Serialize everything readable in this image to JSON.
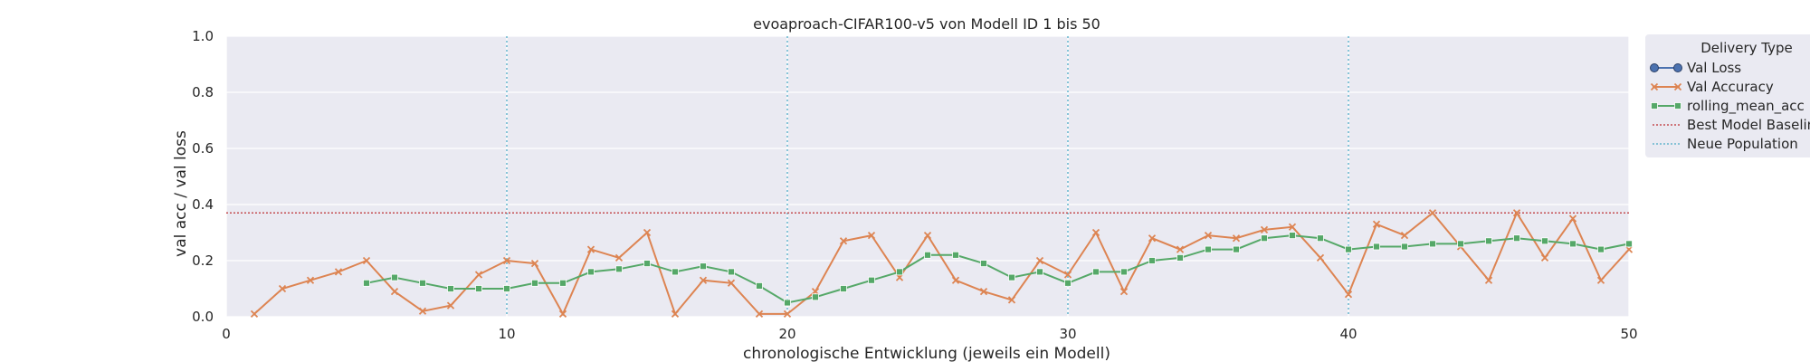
{
  "chart_data": {
    "type": "line",
    "title": "evoaproach-CIFAR100-v5 von Modell ID 1 bis 50",
    "xlabel": "chronologische Entwicklung (jeweils ein Modell)",
    "ylabel": "val acc / val loss",
    "xlim": [
      0,
      50
    ],
    "ylim": [
      0,
      1.0
    ],
    "xticks": [
      "0",
      "10",
      "20",
      "30",
      "40",
      "50"
    ],
    "yticks": [
      "0.0",
      "0.2",
      "0.4",
      "0.6",
      "0.8",
      "1.0"
    ],
    "grid": true,
    "legend_placement": "outside-upper-right",
    "legend_title": "Delivery Type",
    "series": [
      {
        "name": "Val Loss",
        "color": "#4c72b0",
        "marker": "circle",
        "x": [],
        "y": []
      },
      {
        "name": "Val Accuracy",
        "color": "#dd8452",
        "marker": "x",
        "x": [
          1,
          2,
          3,
          4,
          5,
          6,
          7,
          8,
          9,
          10,
          11,
          12,
          13,
          14,
          15,
          16,
          17,
          18,
          19,
          20,
          21,
          22,
          23,
          24,
          25,
          26,
          27,
          28,
          29,
          30,
          31,
          32,
          33,
          34,
          35,
          36,
          37,
          38,
          39,
          40,
          41,
          42,
          43,
          44,
          45,
          46,
          47,
          48,
          49,
          50
        ],
        "y": [
          0.01,
          0.1,
          0.13,
          0.16,
          0.2,
          0.09,
          0.02,
          0.04,
          0.15,
          0.2,
          0.19,
          0.01,
          0.24,
          0.21,
          0.3,
          0.01,
          0.13,
          0.12,
          0.01,
          0.01,
          0.09,
          0.27,
          0.29,
          0.14,
          0.29,
          0.13,
          0.09,
          0.06,
          0.2,
          0.15,
          0.3,
          0.09,
          0.28,
          0.24,
          0.29,
          0.28,
          0.31,
          0.32,
          0.21,
          0.08,
          0.33,
          0.29,
          0.37,
          0.25,
          0.13,
          0.37,
          0.21,
          0.35,
          0.13,
          0.24
        ]
      },
      {
        "name": "rolling_mean_acc",
        "color": "#55a868",
        "marker": "square",
        "x": [
          5,
          6,
          7,
          8,
          9,
          10,
          11,
          12,
          13,
          14,
          15,
          16,
          17,
          18,
          19,
          20,
          21,
          22,
          23,
          24,
          25,
          26,
          27,
          28,
          29,
          30,
          31,
          32,
          33,
          34,
          35,
          36,
          37,
          38,
          39,
          40,
          41,
          42,
          43,
          44,
          45,
          46,
          47,
          48,
          49,
          50
        ],
        "y": [
          0.12,
          0.14,
          0.12,
          0.1,
          0.1,
          0.1,
          0.12,
          0.12,
          0.16,
          0.17,
          0.19,
          0.16,
          0.18,
          0.16,
          0.11,
          0.05,
          0.07,
          0.1,
          0.13,
          0.16,
          0.22,
          0.22,
          0.19,
          0.14,
          0.16,
          0.12,
          0.16,
          0.16,
          0.2,
          0.21,
          0.24,
          0.24,
          0.28,
          0.29,
          0.28,
          0.24,
          0.25,
          0.25,
          0.26,
          0.26,
          0.27,
          0.28,
          0.27,
          0.26,
          0.24,
          0.26
        ]
      },
      {
        "name": "Best Model Baseline",
        "color": "#c44e52",
        "style": "dotted",
        "y_const": 0.37
      },
      {
        "name": "Neue Population",
        "color": "#64b5cd",
        "style": "dotted",
        "x_lines": [
          10,
          20,
          30,
          40
        ]
      }
    ]
  }
}
